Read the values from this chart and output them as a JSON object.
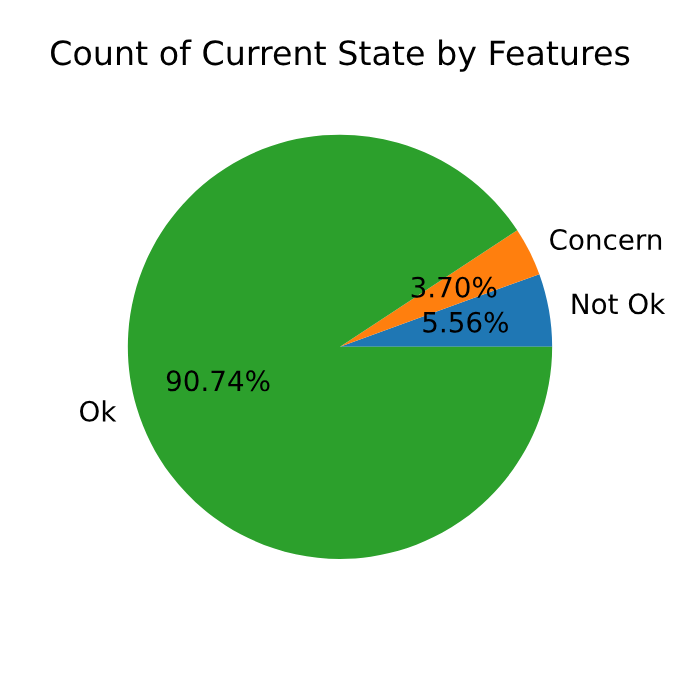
{
  "chart_data": {
    "type": "pie",
    "title": "Count of Current State by Features",
    "categories": [
      "Not Ok",
      "Concern",
      "Ok"
    ],
    "values": [
      5.56,
      3.7,
      90.74
    ],
    "value_labels": [
      "5.56%",
      "3.70%",
      "90.74%"
    ],
    "colors": [
      "#1f77b4",
      "#ff7f0e",
      "#2ca02c"
    ],
    "legend": false
  }
}
